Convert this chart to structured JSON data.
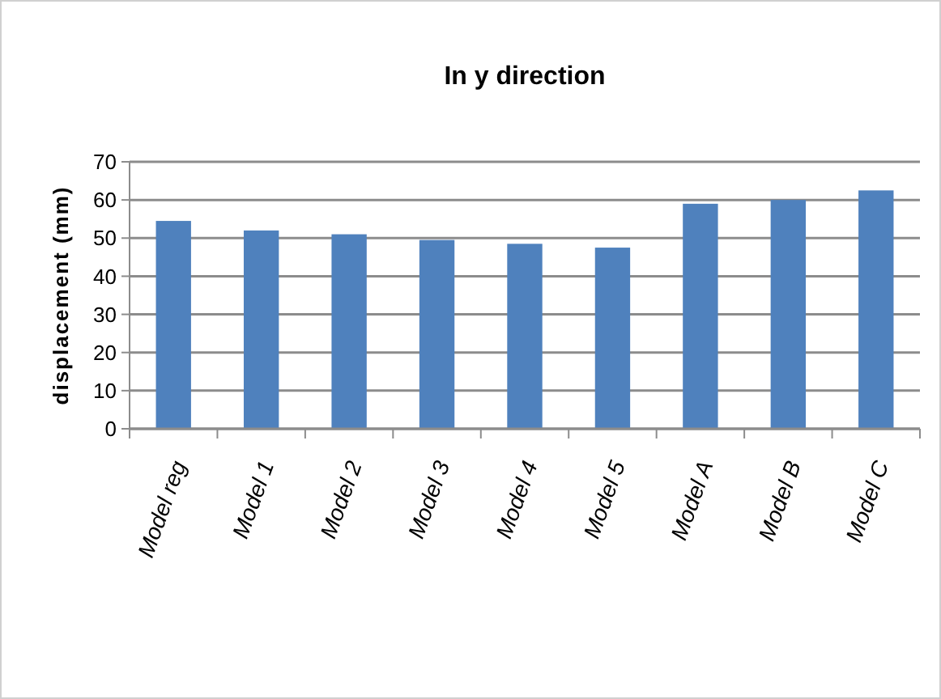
{
  "chart_data": {
    "type": "bar",
    "title": "In y direction",
    "ylabel": "displacement (mm)",
    "categories": [
      "Model reg",
      "Model 1",
      "Model 2",
      "Model 3",
      "Model 4",
      "Model 5",
      "Model A",
      "Model B",
      "Model C"
    ],
    "values": [
      54.5,
      52,
      51,
      49.5,
      48.5,
      47.5,
      59,
      60,
      62.5
    ],
    "color": "#4f81bd",
    "ylim": [
      0,
      70
    ],
    "yticks": [
      0,
      10,
      20,
      30,
      40,
      50,
      60,
      70
    ],
    "grid": "y"
  }
}
